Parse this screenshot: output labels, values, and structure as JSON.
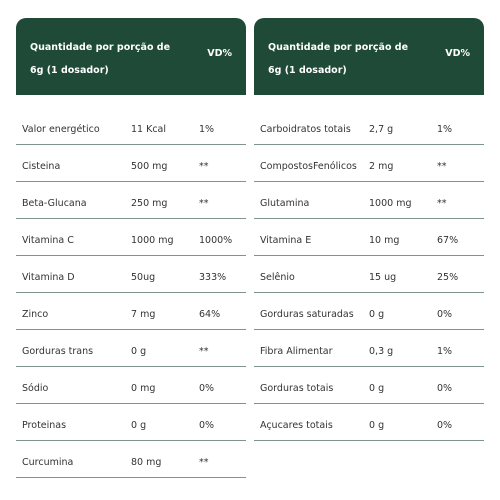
{
  "tables": [
    {
      "header": {
        "title": "Quantidade por porção de 6g (1 dosador)",
        "vd": "VD%"
      },
      "rows": [
        [
          "Valor energético",
          "11 Kcal",
          "1%"
        ],
        [
          "Cisteina",
          "500 mg",
          "**"
        ],
        [
          "Beta-Glucana",
          "250 mg",
          "**"
        ],
        [
          "Vitamina C",
          "1000 mg",
          "1000%"
        ],
        [
          "Vitamina D",
          "50ug",
          "333%"
        ],
        [
          "Zinco",
          "7 mg",
          "64%"
        ],
        [
          "Gorduras trans",
          "0 g",
          "**"
        ],
        [
          "Sódio",
          "0 mg",
          "0%"
        ],
        [
          "Proteinas",
          "0 g",
          "0%"
        ],
        [
          "Curcumina",
          "80 mg",
          "**"
        ]
      ]
    },
    {
      "header": {
        "title": "Quantidade por porção de 6g (1 dosador)",
        "vd": "VD%"
      },
      "rows": [
        [
          "Carboidratos totais",
          "2,7 g",
          "1%"
        ],
        [
          "CompostosFenólicos",
          "2 mg",
          "**"
        ],
        [
          "Glutamina",
          "1000 mg",
          "**"
        ],
        [
          "Vitamina E",
          "10 mg",
          "67%"
        ],
        [
          "Selênio",
          "15 ug",
          "25%"
        ],
        [
          "Gorduras saturadas",
          "0 g",
          "0%"
        ],
        [
          "Fibra Alimentar",
          "0,3 g",
          "1%"
        ],
        [
          "Gorduras totais",
          "0 g",
          "0%"
        ],
        [
          "Açucares totais",
          "0 g",
          "0%"
        ]
      ]
    }
  ]
}
